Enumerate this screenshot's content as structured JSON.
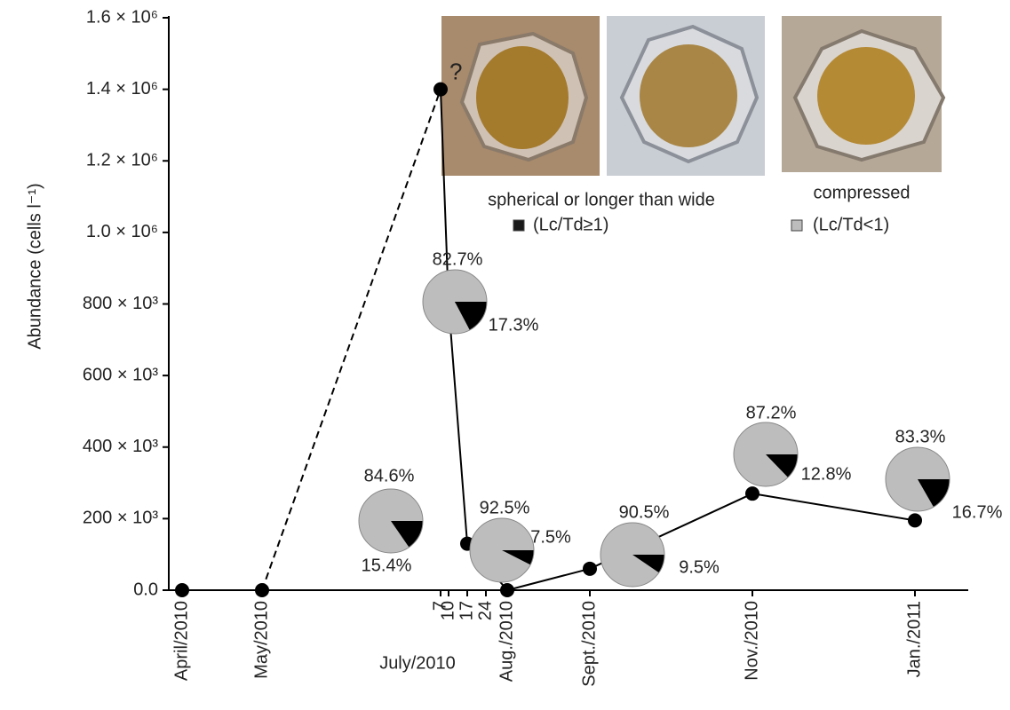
{
  "chart_data": {
    "type": "line",
    "y_label": "Abundance (cells l⁻¹)",
    "x": [
      "2010-04",
      "2010-05",
      "2010-07-07",
      "2010-07-10",
      "2010-07-17",
      "2010-07-24",
      "2010-08",
      "2010-09",
      "2010-11",
      "2011-01"
    ],
    "values": [
      0,
      0,
      1400000,
      800000,
      130000,
      70000,
      0,
      60000,
      270000,
      195000
    ],
    "color": "#000000",
    "dashed_segments": [
      [
        1,
        2
      ]
    ],
    "xlim": [
      "2010-03-27",
      "2011-01-21"
    ],
    "xticks": [
      {
        "value": "2010-04",
        "label": "April/2010"
      },
      {
        "value": "2010-05",
        "label": "May/2010"
      },
      {
        "value": "2010-07-07",
        "label": "7"
      },
      {
        "value": "2010-07-10",
        "label": "10"
      },
      {
        "value": "2010-07-17",
        "label": "17"
      },
      {
        "value": "2010-07-24",
        "label": "24"
      },
      {
        "value": "2010-08",
        "label": "Aug./2010"
      },
      {
        "value": "2010-09",
        "label": "Sept./2010"
      },
      {
        "value": "2010-11",
        "label": "Nov./2010"
      },
      {
        "value": "2011-01",
        "label": "Jan./2011"
      }
    ],
    "x_group_label": "July/2010",
    "ylim": [
      0,
      1600000
    ],
    "yticks": [
      {
        "value": 0,
        "label": "0.0"
      },
      {
        "value": 200000,
        "label": "200 × 10³"
      },
      {
        "value": 400000,
        "label": "400 × 10³"
      },
      {
        "value": 600000,
        "label": "600 × 10³"
      },
      {
        "value": 800000,
        "label": "800 × 10³"
      },
      {
        "value": 1000000,
        "label": "1.0 × 10⁶"
      },
      {
        "value": 1200000,
        "label": "1.2 × 10⁶"
      },
      {
        "value": 1400000,
        "label": "1.4 × 10⁶"
      },
      {
        "value": 1600000,
        "label": "1.6 × 10⁶"
      }
    ],
    "annotations": [
      {
        "text": "?",
        "index": 2
      },
      {
        "text": "?",
        "index": 5
      }
    ],
    "pie_colors": [
      "#bdbdbd",
      "#000000"
    ],
    "pies": [
      {
        "values": [
          82.7,
          17.3
        ],
        "value_labels": [
          "82.7%",
          "17.3%"
        ]
      },
      {
        "values": [
          84.6,
          15.4
        ],
        "value_labels": [
          "84.6%",
          "15.4%"
        ]
      },
      {
        "values": [
          92.5,
          7.5
        ],
        "value_labels": [
          "92.5%",
          "7.5%"
        ]
      },
      {
        "values": [
          90.5,
          9.5
        ],
        "value_labels": [
          "90.5%",
          "9.5%"
        ]
      },
      {
        "values": [
          87.2,
          12.8
        ],
        "value_labels": [
          "87.2%",
          "12.8%"
        ]
      },
      {
        "values": [
          83.3,
          16.7
        ],
        "value_labels": [
          "83.3%",
          "16.7%"
        ]
      }
    ],
    "legend": [
      {
        "text": "spherical or longer than wide",
        "label": "(Lc/Td≥1)",
        "color": "#1a1a1a"
      },
      {
        "text": "compressed",
        "label": "(Lc/Td<1)",
        "color": "#bdbdbd"
      }
    ]
  }
}
